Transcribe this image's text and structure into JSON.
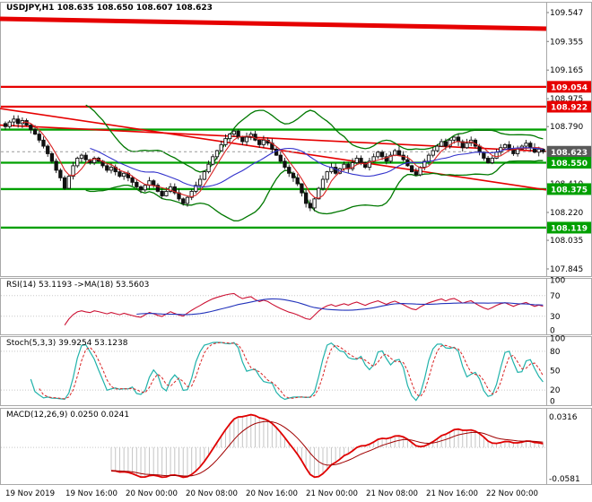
{
  "window": {
    "title": "USDJPY,H1"
  },
  "colors": {
    "bull": "#ffffff",
    "bear": "#111111",
    "wick": "#111111",
    "bollinger": "#007800",
    "ma_fast": "#d92323",
    "ma_slow": "#3333cc",
    "res_red": "#e60000",
    "sup_green": "#00a000",
    "rsi_line": "#cc1133",
    "rsi_ma": "#2233bb",
    "stoch_k": "#20b2aa",
    "stoch_d": "#d92323",
    "macd_line": "#e00000",
    "macd_signal": "#a00000",
    "current_badge": "#5a5a5a",
    "panel_border": "#a8a8a8",
    "axis_text": "#000000"
  },
  "panels": {
    "main": {
      "label": "USDJPY,H1 108.635 108.650 108.607 108.623",
      "axis_ticks": [
        "109.547",
        "109.355",
        "109.165",
        "108.975",
        "108.790",
        "108.410",
        "108.220",
        "108.035",
        "107.845"
      ],
      "badges": [
        {
          "value": "109.054",
          "color": "#e60000"
        },
        {
          "value": "108.922",
          "color": "#e60000"
        },
        {
          "value": "108.623",
          "color": "#5a5a5a"
        },
        {
          "value": "108.550",
          "color": "#00a000"
        },
        {
          "value": "108.375",
          "color": "#00a000"
        },
        {
          "value": "108.119",
          "color": "#00a000"
        }
      ]
    },
    "rsi": {
      "label": "RSI(14) 53.1193 ->MA(18) 53.5603",
      "axis_ticks": [
        "100",
        "70",
        "30",
        "0"
      ]
    },
    "stoch": {
      "label": "Stoch(5,3,3) 39.9254 53.1238",
      "axis_ticks": [
        "100",
        "80",
        "50",
        "20",
        "0"
      ]
    },
    "macd": {
      "label": "MACD(12,26,9) 0.0250 0.0241",
      "axis_ticks": [
        "0.0316",
        "-0.0581"
      ]
    }
  },
  "time_axis": [
    "19 Nov 2019",
    "19 Nov 16:00",
    "20 Nov 00:00",
    "20 Nov 08:00",
    "20 Nov 16:00",
    "21 Nov 00:00",
    "21 Nov 08:00",
    "21 Nov 16:00",
    "22 Nov 00:00"
  ],
  "chart_data": [
    {
      "type": "candlestick",
      "symbol": "USDJPY",
      "timeframe": "H1",
      "title": "USDJPY,H1",
      "ohlc_latest": {
        "open": 108.635,
        "high": 108.65,
        "low": 108.607,
        "close": 108.623
      },
      "price_axis": {
        "min": 107.797,
        "max": 109.63,
        "ticks": [
          109.547,
          109.355,
          109.165,
          108.975,
          108.79,
          108.41,
          108.22,
          108.035,
          107.845
        ]
      },
      "x_labels": [
        "19 Nov 2019",
        "19 Nov 16:00",
        "20 Nov 00:00",
        "20 Nov 08:00",
        "20 Nov 16:00",
        "21 Nov 00:00",
        "21 Nov 08:00",
        "21 Nov 16:00",
        "22 Nov 00:00"
      ],
      "closes": [
        108.79,
        108.82,
        108.84,
        108.81,
        108.83,
        108.8,
        108.77,
        108.74,
        108.7,
        108.66,
        108.61,
        108.56,
        108.5,
        108.45,
        108.38,
        108.46,
        108.53,
        108.58,
        108.6,
        108.57,
        108.55,
        108.58,
        108.56,
        108.53,
        108.5,
        108.52,
        108.49,
        108.46,
        108.48,
        108.45,
        108.42,
        108.39,
        108.37,
        108.4,
        108.43,
        108.4,
        108.36,
        108.33,
        108.36,
        108.39,
        108.35,
        108.31,
        108.28,
        108.32,
        108.36,
        108.4,
        108.44,
        108.49,
        108.54,
        108.59,
        108.63,
        108.67,
        108.71,
        108.74,
        108.76,
        108.72,
        108.69,
        108.72,
        108.74,
        108.7,
        108.67,
        108.7,
        108.68,
        108.64,
        108.6,
        108.56,
        108.52,
        108.48,
        108.45,
        108.41,
        108.35,
        108.28,
        108.25,
        108.31,
        108.38,
        108.44,
        108.49,
        108.52,
        108.48,
        108.51,
        108.54,
        108.51,
        108.55,
        108.58,
        108.55,
        108.52,
        108.56,
        108.59,
        108.62,
        108.59,
        108.56,
        108.6,
        108.63,
        108.6,
        108.57,
        108.53,
        108.49,
        108.47,
        108.52,
        108.56,
        108.6,
        108.63,
        108.66,
        108.69,
        108.66,
        108.7,
        108.72,
        108.69,
        108.65,
        108.68,
        108.7,
        108.66,
        108.62,
        108.58,
        108.55,
        108.58,
        108.62,
        108.65,
        108.67,
        108.64,
        108.61,
        108.64,
        108.66,
        108.68,
        108.65,
        108.62,
        108.64,
        108.623
      ],
      "levels": [
        {
          "price": 109.054,
          "color": "red"
        },
        {
          "price": 108.922,
          "color": "red"
        },
        {
          "price": 108.77,
          "color": "green"
        },
        {
          "price": 108.55,
          "color": "green"
        },
        {
          "price": 108.375,
          "color": "green"
        },
        {
          "price": 108.119,
          "color": "green"
        }
      ],
      "trendlines": [
        {
          "from_price": 109.505,
          "to_price": 109.44,
          "color": "red",
          "width": 5
        },
        {
          "from_price": 108.91,
          "to_price": 108.37,
          "color": "red",
          "width": 1.6
        },
        {
          "from_price": 108.8,
          "to_price": 108.625,
          "color": "red",
          "width": 1.6
        }
      ],
      "overlays": [
        "Bollinger(20,2)",
        "MA(5)",
        "MA(21)"
      ]
    },
    {
      "type": "line",
      "name": "RSI(14)",
      "params": {
        "period": 14,
        "ma_period": 18
      },
      "current": 53.1193,
      "ma_current": 53.5603,
      "ylim": [
        0,
        100
      ],
      "levels": [
        30,
        70
      ]
    },
    {
      "type": "line",
      "name": "Stochastic(5,3,3)",
      "current_k": 39.9254,
      "current_d": 53.1238,
      "ylim": [
        0,
        100
      ],
      "levels": [
        20,
        80
      ]
    },
    {
      "type": "line",
      "name": "MACD(12,26,9)",
      "current_macd": 0.025,
      "current_signal": 0.0241,
      "axis_max": 0.0316,
      "axis_min": -0.0581
    }
  ]
}
